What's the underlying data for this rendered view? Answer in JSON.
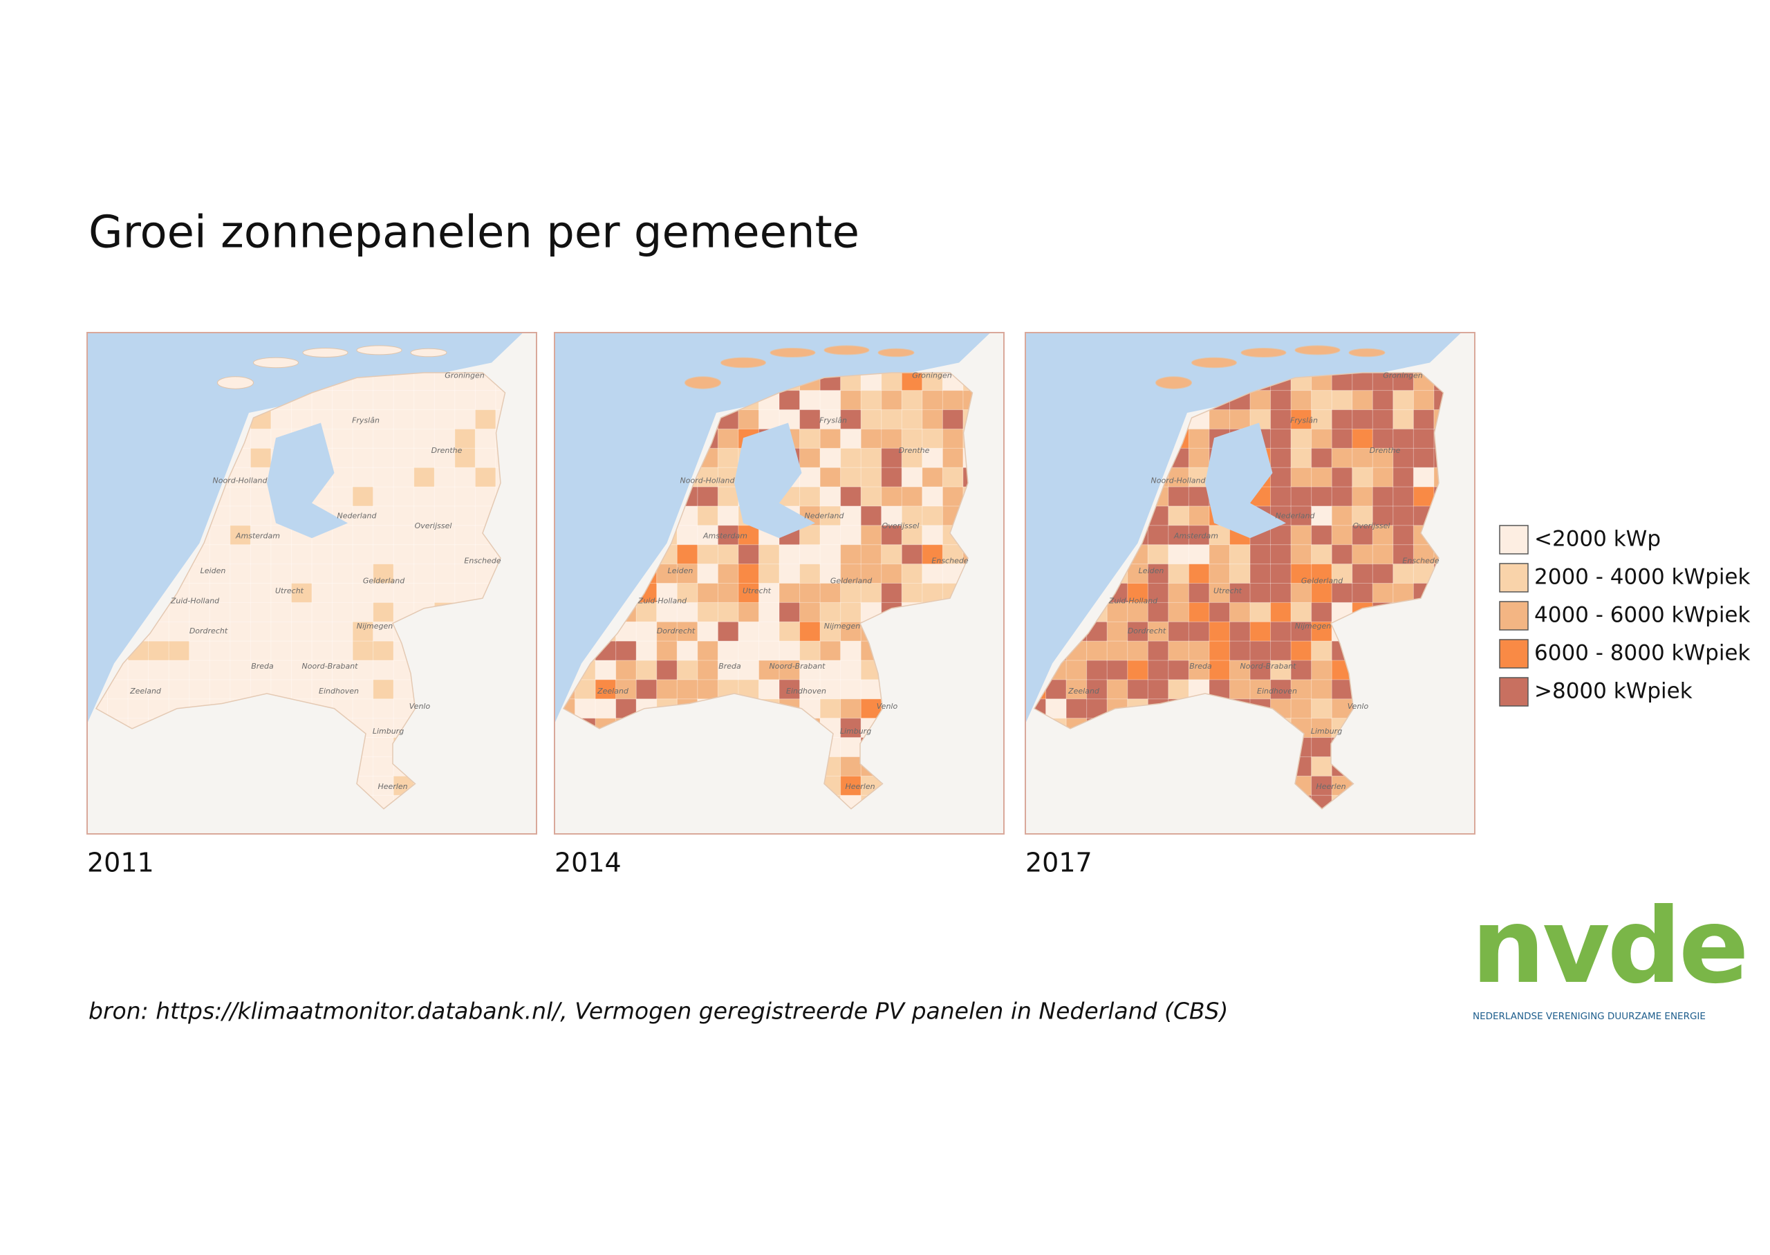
{
  "header": {
    "title": "Groei zonnepanelen per gemeente"
  },
  "maps": [
    {
      "year": "2011"
    },
    {
      "year": "2014"
    },
    {
      "year": "2017"
    }
  ],
  "map_labels": [
    "Groningen",
    "Fryslân",
    "Drenthe",
    "Noord-Holland",
    "Nederland",
    "Overijssel",
    "Amsterdam",
    "Enschede",
    "Leiden",
    "Utrecht",
    "Gelderland",
    "Zuid-Holland",
    "Nijmegen",
    "Dordrecht",
    "Breda",
    "Noord-Brabant",
    "Eindhoven",
    "Zeeland",
    "Venlo",
    "Limburg",
    "Heerlen"
  ],
  "legend": {
    "items": [
      {
        "label": "<2000 kWp",
        "color": "#fdeee2"
      },
      {
        "label": "2000 - 4000 kWpiek",
        "color": "#f9d3aa"
      },
      {
        "label": "4000 - 6000 kWpiek",
        "color": "#f3b583"
      },
      {
        "label": "6000 - 8000 kWpiek",
        "color": "#f98a45"
      },
      {
        "label": ">8000 kWpiek",
        "color": "#c87060"
      }
    ]
  },
  "source": "bron: https://klimaatmonitor.databank.nl/, Vermogen geregistreerde PV panelen in Nederland (CBS)",
  "logo": {
    "name": "nvde",
    "subtitle": "NEDERLANDSE VERENIGING DUURZAME ENERGIE"
  }
}
